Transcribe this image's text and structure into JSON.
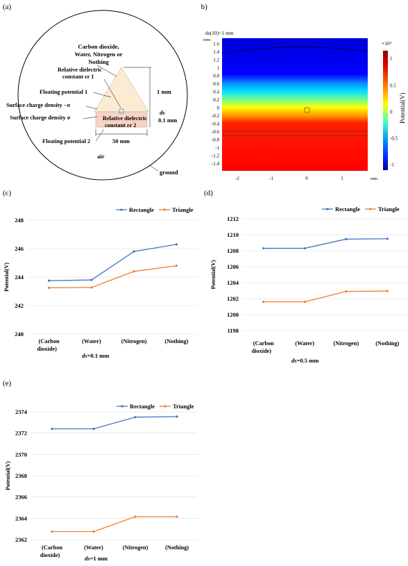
{
  "panel_a": {
    "label": "(a)",
    "gas_text": [
      "Carbon dioxide,",
      "Water, Nitrogen or",
      "Nothing"
    ],
    "er1_text": [
      "Relative dielectric",
      "constant εr 1"
    ],
    "floating1": "Floating potential 1",
    "surf_neg": "Surface charge density −σ",
    "surf_pos": "Surface charge density σ",
    "er2_text": [
      "Relative dielectric",
      "constant εr 2"
    ],
    "floating2": "Floating potential 2",
    "dim_1mm": "1 mm",
    "dim_ds": "ds",
    "dim_01mm": "0.1 mm",
    "dim_50mm": "50 mm",
    "air": "air",
    "ground": "ground"
  },
  "panel_b": {
    "label": "(b)",
    "title": "ds(10)=1 mm",
    "y_unit": "mm",
    "x_unit": "mm",
    "y_ticks": [
      "1.6",
      "1.4",
      "1.2",
      "1",
      "0.8",
      "0.6",
      "0.4",
      "0.2",
      "0",
      "-0.2",
      "-0.4",
      "-0.6",
      "-0.8",
      "-1",
      "-1.2",
      "-1.4"
    ],
    "x_ticks": [
      "-2",
      "-1",
      "0",
      "1"
    ],
    "colorbar_exp": "×10³",
    "colorbar_ticks": [
      "1",
      "0.5",
      "0",
      "-0.5",
      "-1"
    ],
    "colorbar_label": "Potential(V)"
  },
  "chart_data": [
    {
      "label": "(c)",
      "type": "line",
      "categories": [
        [
          "(Carbon",
          "dioxide)"
        ],
        [
          "(Water)"
        ],
        [
          "(Nitrogen)"
        ],
        [
          "(Nothing)"
        ]
      ],
      "series": [
        {
          "name": "Rectangle",
          "color": "#4472C4",
          "values": [
            243.75,
            243.8,
            245.8,
            246.3
          ]
        },
        {
          "name": "Triangle",
          "color": "#ED7D31",
          "values": [
            243.25,
            243.27,
            244.4,
            244.8
          ]
        }
      ],
      "ylabel": "Potential(V)",
      "xlabel": "ds=0.1 mm",
      "ylim": [
        240,
        248
      ],
      "yticks": [
        240,
        242,
        244,
        246,
        248
      ],
      "legend": "top-right"
    },
    {
      "label": "(d)",
      "type": "line",
      "categories": [
        [
          "(Carbon",
          "dioxide)"
        ],
        [
          "(Water)"
        ],
        [
          "(Nitrogen)"
        ],
        [
          "(Nothing)"
        ]
      ],
      "series": [
        {
          "name": "Rectangle",
          "color": "#4472C4",
          "values": [
            1208.3,
            1208.3,
            1209.45,
            1209.5
          ]
        },
        {
          "name": "Triangle",
          "color": "#ED7D31",
          "values": [
            1201.6,
            1201.6,
            1202.9,
            1202.95
          ]
        }
      ],
      "ylabel": "Potential(V)",
      "xlabel": "ds=0.5 mm",
      "ylim": [
        1198,
        1212
      ],
      "yticks": [
        1198,
        1200,
        1202,
        1204,
        1206,
        1208,
        1210,
        1212
      ],
      "legend": "top-right"
    },
    {
      "label": "(e)",
      "type": "line",
      "categories": [
        [
          "(Carbon",
          "dioxide)"
        ],
        [
          "(Water)"
        ],
        [
          "(Nitrogen)"
        ],
        [
          "(Nothing)"
        ]
      ],
      "series": [
        {
          "name": "Rectangle",
          "color": "#4472C4",
          "values": [
            2372.4,
            2372.4,
            2373.5,
            2373.55
          ]
        },
        {
          "name": "Triangle",
          "color": "#ED7D31",
          "values": [
            2362.75,
            2362.75,
            2364.15,
            2364.15
          ]
        }
      ],
      "ylabel": "Potential(V)",
      "xlabel": "ds=1 mm",
      "ylim": [
        2362,
        2374
      ],
      "yticks": [
        2362,
        2364,
        2366,
        2368,
        2370,
        2372,
        2374
      ],
      "legend": "top-right"
    }
  ]
}
